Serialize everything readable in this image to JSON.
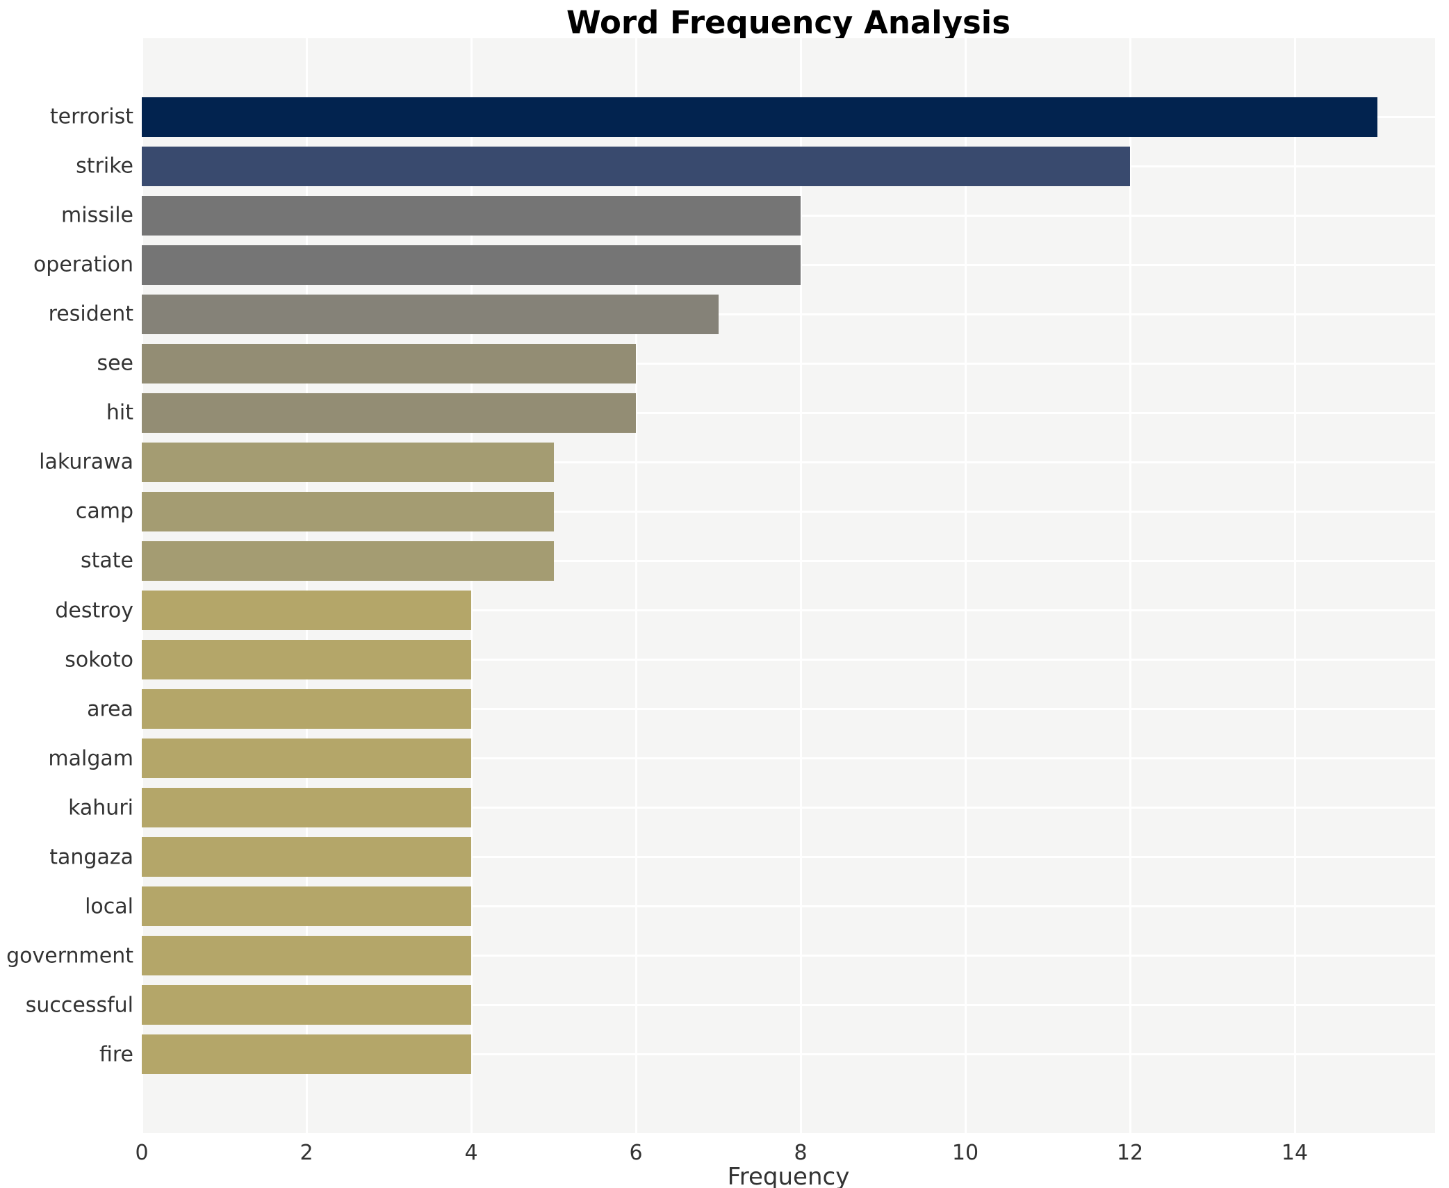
{
  "chart_data": {
    "type": "bar",
    "orientation": "horizontal",
    "title": "Word Frequency Analysis",
    "xlabel": "Frequency",
    "ylabel": "",
    "categories": [
      "terrorist",
      "strike",
      "missile",
      "operation",
      "resident",
      "see",
      "hit",
      "lakurawa",
      "camp",
      "state",
      "destroy",
      "sokoto",
      "area",
      "malgam",
      "kahuri",
      "tangaza",
      "local",
      "government",
      "successful",
      "fire"
    ],
    "values": [
      15,
      12,
      8,
      8,
      7,
      6,
      6,
      5,
      5,
      5,
      4,
      4,
      4,
      4,
      4,
      4,
      4,
      4,
      4,
      4
    ],
    "bar_colors": [
      "#02234f",
      "#394a6e",
      "#757575",
      "#757575",
      "#858278",
      "#938d74",
      "#938d74",
      "#a49c72",
      "#a49c72",
      "#a49c72",
      "#b4a669",
      "#b4a669",
      "#b4a669",
      "#b4a669",
      "#b4a669",
      "#b4a669",
      "#b4a669",
      "#b4a669",
      "#b4a669",
      "#b4a669"
    ],
    "xticks": [
      0,
      2,
      4,
      6,
      8,
      10,
      12,
      14
    ],
    "xlim": [
      0,
      15.7
    ],
    "grid": "on",
    "legend": "none",
    "colors": {
      "plot_background": "#f5f5f4",
      "figure_background": "#ffffff",
      "gridline": "#ffffff",
      "tick_label": "#333333",
      "title": "#000000"
    }
  }
}
